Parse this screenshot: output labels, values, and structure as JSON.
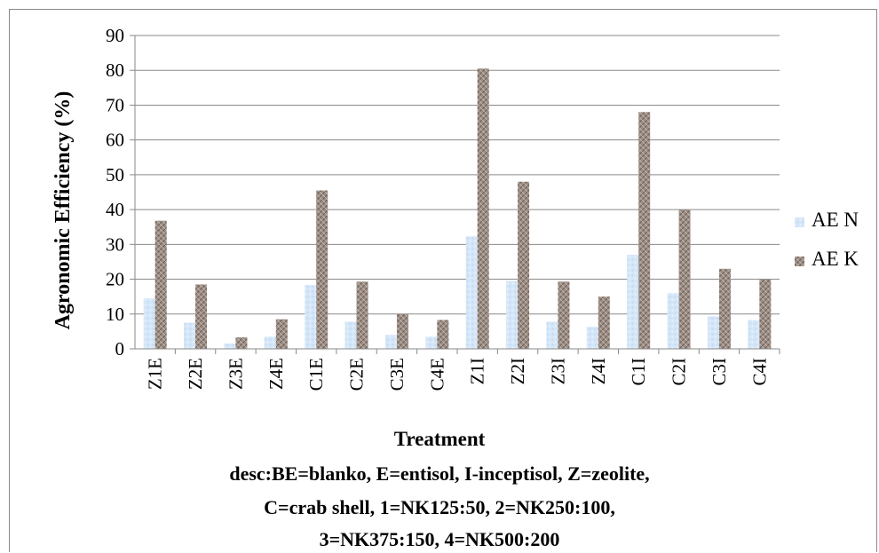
{
  "chart_data": {
    "type": "bar",
    "categories": [
      "Z1E",
      "Z2E",
      "Z3E",
      "Z4E",
      "C1E",
      "C2E",
      "C3E",
      "C4E",
      "Z1I",
      "Z2I",
      "Z3I",
      "Z4I",
      "C1I",
      "C2I",
      "C3I",
      "C4I"
    ],
    "series": [
      {
        "name": "AE N",
        "color": "#d4e6f8",
        "values": [
          14.5,
          7.5,
          1.5,
          3.5,
          18.3,
          7.8,
          4.0,
          3.5,
          32.3,
          19.5,
          7.8,
          6.3,
          27.0,
          16.0,
          9.3,
          8.3
        ]
      },
      {
        "name": "AE K",
        "color": "#9e8f86",
        "values": [
          36.8,
          18.5,
          3.3,
          8.5,
          45.5,
          19.3,
          10.0,
          8.3,
          80.5,
          48.0,
          19.3,
          15.0,
          68.0,
          40.0,
          23.0,
          20.0
        ]
      }
    ],
    "xlabel": "Treatment",
    "ylabel": "Agronomic Efficiency (%)",
    "ylim": [
      0,
      90
    ],
    "yticks": [
      0,
      10,
      20,
      30,
      40,
      50,
      60,
      70,
      80,
      90
    ],
    "grid": true,
    "legend_position": "right",
    "description_lines": [
      "desc:BE=blanko, E=entisol, I-inceptisol, Z=zeolite,",
      "C=crab shell, 1=NK125:50, 2=NK250:100,",
      "3=NK375:150, 4=NK500:200"
    ]
  }
}
